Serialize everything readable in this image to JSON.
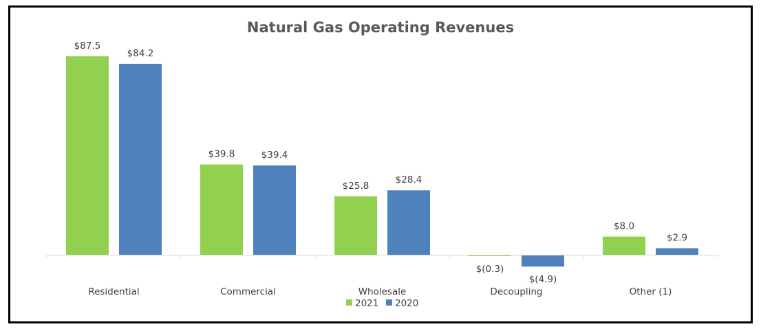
{
  "chart_data": {
    "type": "bar",
    "title": "Natural Gas Operating Revenues",
    "xlabel": "",
    "ylabel": "",
    "categories": [
      "Residential",
      "Commercial",
      "Wholesale",
      "Decoupling",
      "Other (1)"
    ],
    "series": [
      {
        "name": "2021",
        "color": "#92D050",
        "values": [
          87.5,
          39.8,
          25.8,
          -0.3,
          8.0
        ],
        "labels": [
          "$87.5",
          "$39.8",
          "$25.8",
          "$(0.3)",
          "$8.0"
        ]
      },
      {
        "name": "2020",
        "color": "#4F81BD",
        "values": [
          84.2,
          39.4,
          28.4,
          -4.9,
          2.9
        ],
        "labels": [
          "$84.2",
          "$39.4",
          "$28.4",
          "$(4.9)",
          "$2.9"
        ]
      }
    ],
    "ylim": [
      -5,
      90
    ],
    "grid": false,
    "y_axis_visible": false,
    "legend": {
      "position": "bottom",
      "entries": [
        "2021",
        "2020"
      ]
    },
    "axis_color": "#D9D9D9"
  }
}
